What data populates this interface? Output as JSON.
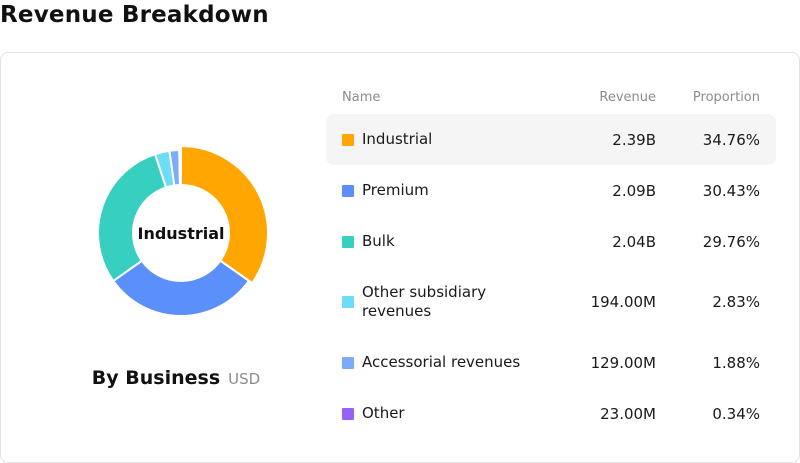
{
  "title": "Revenue Breakdown",
  "chart": {
    "center_label": "Industrial",
    "caption": "By Business",
    "unit": "USD"
  },
  "table": {
    "headers": {
      "name": "Name",
      "revenue": "Revenue",
      "proportion": "Proportion"
    },
    "rows": [
      {
        "name": "Industrial",
        "revenue": "2.39B",
        "proportion": "34.76%",
        "color": "#FFA600"
      },
      {
        "name": "Premium",
        "revenue": "2.09B",
        "proportion": "30.43%",
        "color": "#5B8FF9"
      },
      {
        "name": "Bulk",
        "revenue": "2.04B",
        "proportion": "29.76%",
        "color": "#36CFC0"
      },
      {
        "name": "Other subsidiary revenues",
        "revenue": "194.00M",
        "proportion": "2.83%",
        "color": "#6DDCF7"
      },
      {
        "name": "Accessorial revenues",
        "revenue": "129.00M",
        "proportion": "1.88%",
        "color": "#7CACF8"
      },
      {
        "name": "Other",
        "revenue": "23.00M",
        "proportion": "0.34%",
        "color": "#9661F5"
      }
    ]
  },
  "chart_data": {
    "type": "pie",
    "title": "",
    "categories": [
      "Industrial",
      "Premium",
      "Bulk",
      "Other subsidiary revenues",
      "Accessorial revenues",
      "Other"
    ],
    "values": [
      34.76,
      30.43,
      29.76,
      2.83,
      1.88,
      0.34
    ],
    "colors": [
      "#FFA600",
      "#5B8FF9",
      "#36CFC0",
      "#6DDCF7",
      "#7CACF8",
      "#9661F5"
    ],
    "highlighted": "Industrial"
  }
}
